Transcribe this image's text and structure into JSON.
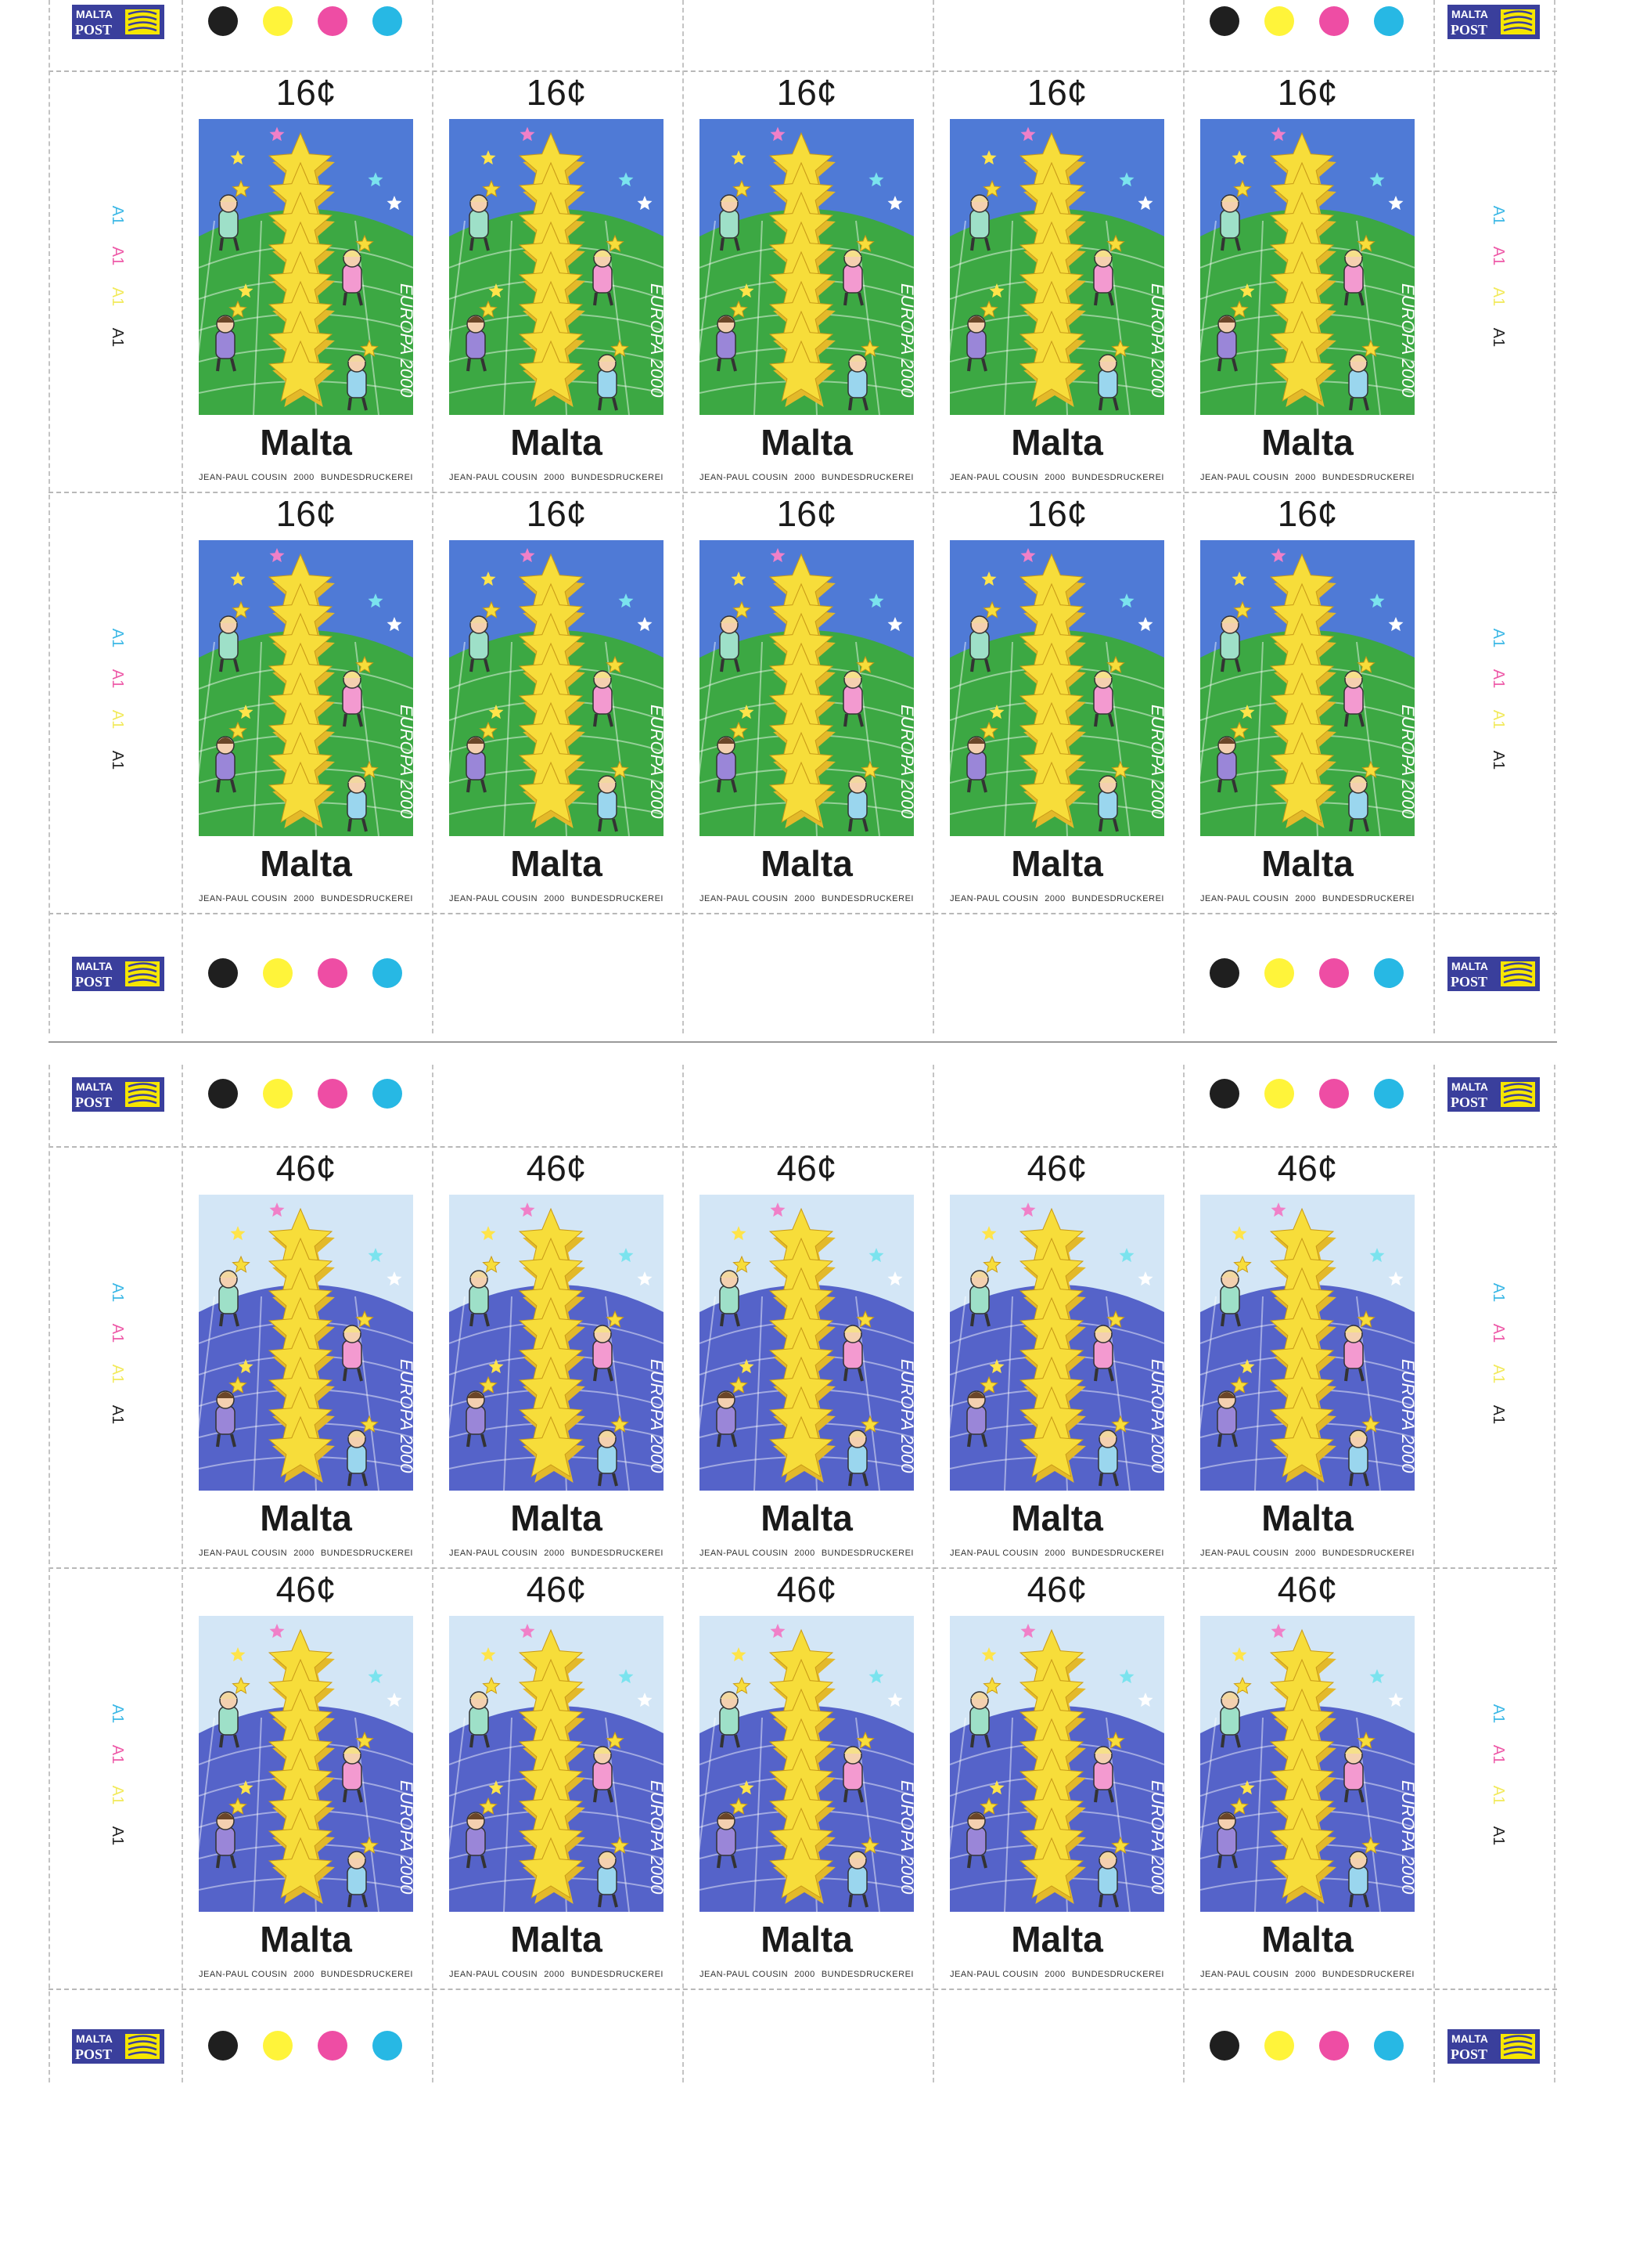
{
  "logo_text": [
    "MALTA",
    "POST"
  ],
  "colors": {
    "traffic_lights": [
      "#1f1f1f",
      "#fff43a",
      "#ee4da4",
      "#27b8e4"
    ],
    "plate": [
      "#3cb8e6",
      "#ee5aa8",
      "#f2ea5c",
      "#222222"
    ],
    "logo_blue": "#3a3f9c",
    "logo_yellow": "#f6e600",
    "star": "#f7dd3a",
    "star_shade": "#e3b92a"
  },
  "panes": [
    {
      "value": "16¢",
      "country": "Malta",
      "vertical_text": "EUROPA 2000",
      "sky": "#4f7ad6",
      "ground": "#3ca843",
      "plate_label": "A1"
    },
    {
      "value": "46¢",
      "country": "Malta",
      "vertical_text": "EUROPA 2000",
      "sky": "#d3e6f6",
      "ground": "#5563c9",
      "plate_label": "A1"
    }
  ],
  "imprint": [
    "JEAN-PAUL COUSIN",
    "2000",
    "BUNDESDRUCKEREI"
  ]
}
